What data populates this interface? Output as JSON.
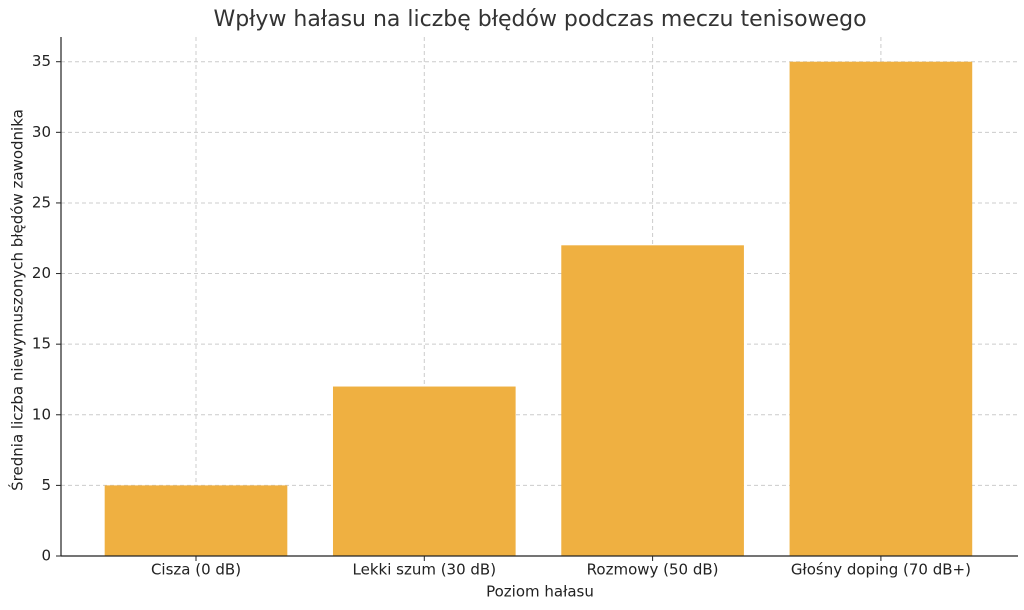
{
  "chart_data": {
    "type": "bar",
    "title": "Wpływ hałasu na liczbę błędów podczas meczu tenisowego",
    "x_label": "Poziom hałasu",
    "y_label": "Średnia liczba niewymuszonych błędów zawodnika",
    "categories": [
      "Cisza (0 dB)",
      "Lekki szum (30 dB)",
      "Rozmowy (50 dB)",
      "Głośny doping (70 dB+)"
    ],
    "values": [
      5,
      12,
      22,
      35
    ],
    "color": "#efb041",
    "ylim": [
      0,
      36.75
    ],
    "yticks": [
      0,
      5,
      10,
      15,
      20,
      25,
      30,
      35
    ],
    "grid": true
  }
}
